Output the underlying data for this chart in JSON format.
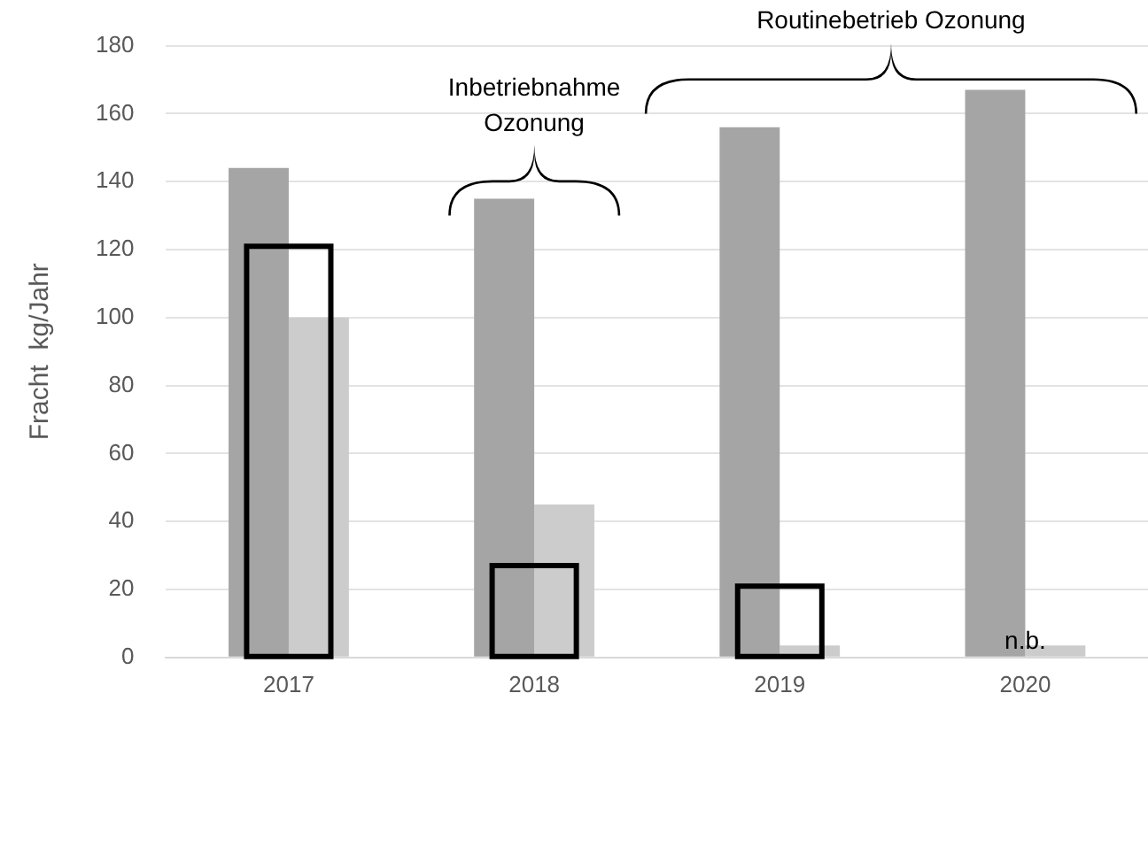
{
  "chart_data": {
    "type": "bar",
    "ylabel": "Fracht  kg/Jahr",
    "categories": [
      "2017",
      "2018",
      "2019",
      "2020"
    ],
    "series": [
      {
        "color": "#a5a5a5",
        "values": [
          144,
          135,
          156,
          167
        ]
      },
      {
        "color": "#cccccc",
        "values": [
          100,
          45,
          3.5,
          3.5
        ]
      },
      {
        "line_style": "solid",
        "color": "#000000",
        "values": [
          121,
          27,
          21,
          null
        ]
      }
    ],
    "ylim": [
      0,
      180
    ],
    "yticks": [
      0,
      20,
      40,
      60,
      80,
      100,
      120,
      140,
      160,
      180
    ],
    "grid": "y",
    "legend": false,
    "annotations": [
      "Inbetriebnahme Ozonung",
      "Routinebetrieb Ozonung",
      {
        "text": "n.b.",
        "x": "2020",
        "y": 0
      }
    ]
  }
}
